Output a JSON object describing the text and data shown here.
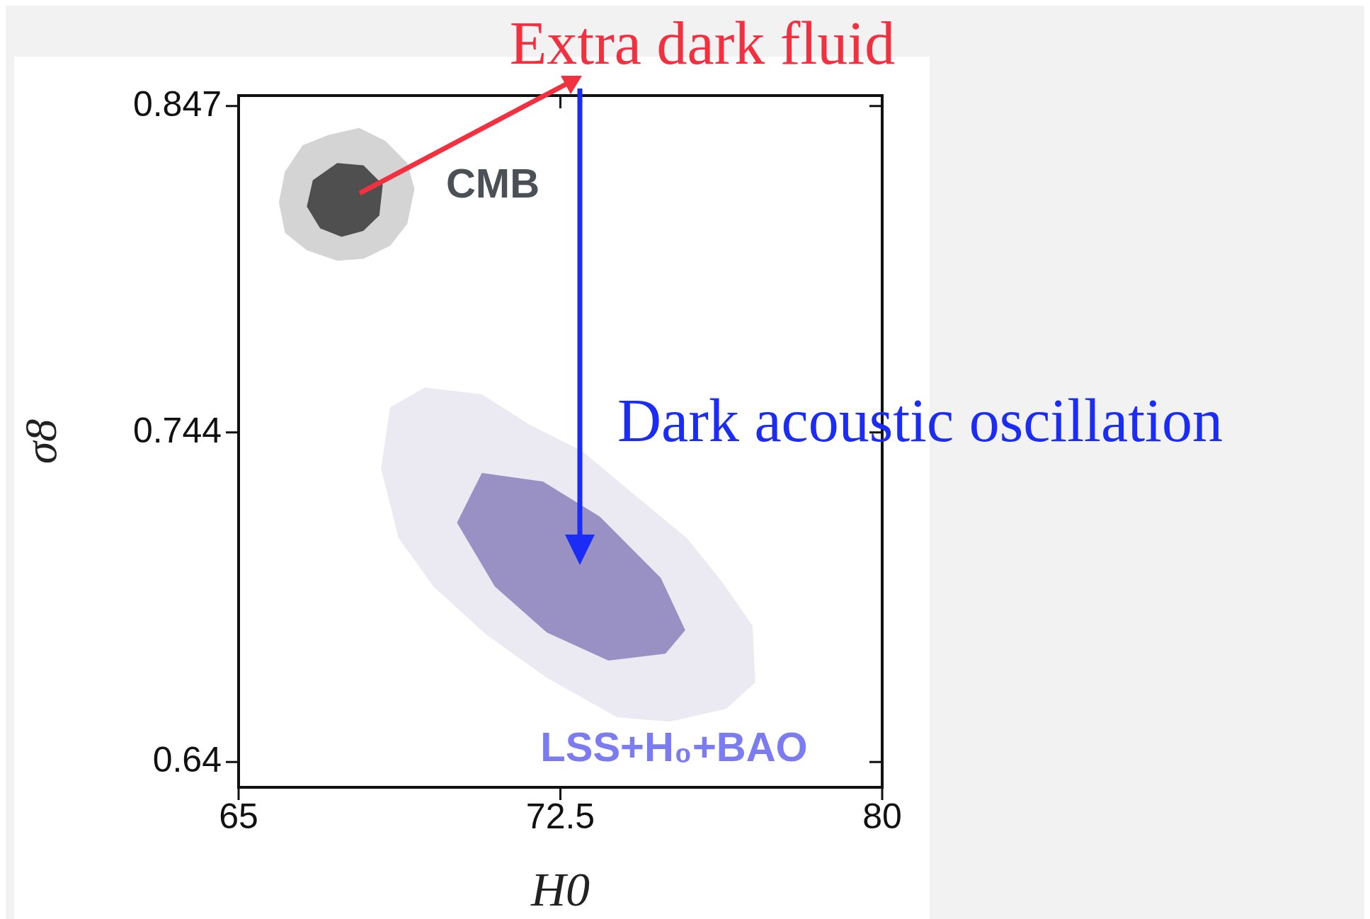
{
  "chart_data": {
    "type": "area",
    "xlabel": "H0",
    "ylabel": "σ8",
    "xlim": [
      65,
      80
    ],
    "ylim": [
      0.632,
      0.8503
    ],
    "xticks": [
      65,
      72.5,
      80
    ],
    "yticks": [
      0.64,
      0.744,
      0.847
    ],
    "grid": false,
    "series": [
      {
        "color": "#d4d4d4",
        "x": [
          67.81,
          68.42,
          68.93,
          69.1,
          68.93,
          68.53,
          67.91,
          67.3,
          66.59,
          66.08,
          65.94,
          66.08,
          66.49,
          67.1
        ],
        "values": [
          0.8401,
          0.836,
          0.829,
          0.8208,
          0.8098,
          0.8029,
          0.7988,
          0.7982,
          0.8015,
          0.807,
          0.8167,
          0.8263,
          0.8346,
          0.8379
        ]
      },
      {
        "color": "#4f4f4f",
        "x": [
          67.3,
          67.91,
          68.36,
          68.28,
          67.91,
          67.4,
          66.9,
          66.59,
          66.73
        ],
        "values": [
          0.829,
          0.8283,
          0.8222,
          0.8125,
          0.8076,
          0.8057,
          0.8084,
          0.8153,
          0.8236
        ]
      },
      {
        "color": "#ebeaf3",
        "x": [
          69.34,
          70.67,
          71.79,
          73.01,
          74.23,
          75.45,
          76.27,
          76.98,
          77.04,
          76.37,
          75.05,
          73.82,
          72.19,
          70.77,
          69.54,
          68.73,
          68.32,
          68.53
        ],
        "values": [
          0.7582,
          0.756,
          0.7464,
          0.7381,
          0.7243,
          0.7106,
          0.6968,
          0.683,
          0.6651,
          0.6568,
          0.6527,
          0.6541,
          0.6665,
          0.6802,
          0.6954,
          0.7106,
          0.7326,
          0.7519
        ]
      },
      {
        "color": "#9990c4",
        "x": [
          70.67,
          72.09,
          73.42,
          74.84,
          75.41,
          74.95,
          73.62,
          72.19,
          70.97,
          70.09
        ],
        "values": [
          0.7312,
          0.7285,
          0.7174,
          0.6981,
          0.6816,
          0.6742,
          0.672,
          0.6808,
          0.6954,
          0.7155
        ]
      }
    ],
    "annotations": [
      "CMB",
      "LSS+H₀+BAO",
      "Extra dark fluid",
      "Dark acoustic oscillation"
    ]
  }
}
